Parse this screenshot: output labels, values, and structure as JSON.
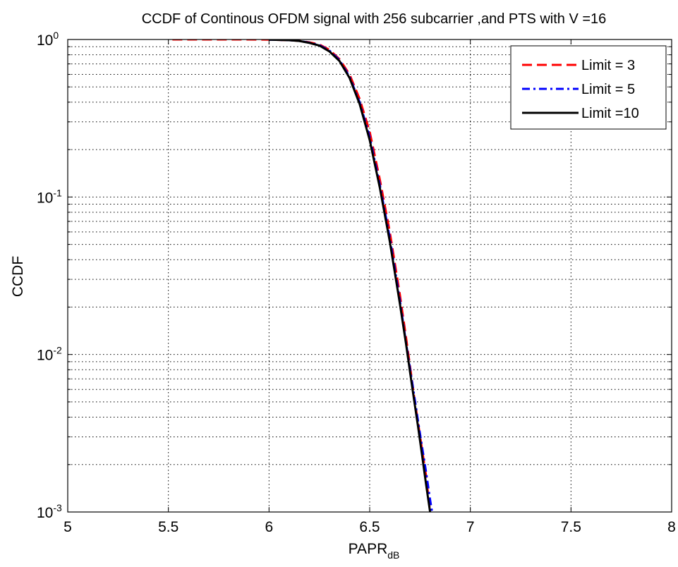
{
  "chart_data": {
    "type": "line",
    "title": "CCDF of Continous OFDM signal with 256 subcarrier ,and PTS with V =16",
    "xlabel": {
      "main": "PAPR",
      "subscript": "dB"
    },
    "ylabel": "CCDF",
    "xlim": [
      5,
      8
    ],
    "ylim": [
      0.001,
      1
    ],
    "yscale": "log",
    "grid": true,
    "legend_position": "top-right",
    "x_ticks": [
      "5",
      "5.5",
      "6",
      "6.5",
      "7",
      "7.5",
      "8"
    ],
    "y_ticks": [
      {
        "base": "10",
        "exp": "0"
      },
      {
        "base": "10",
        "exp": "-1"
      },
      {
        "base": "10",
        "exp": "-2"
      },
      {
        "base": "10",
        "exp": "-3"
      }
    ],
    "series": [
      {
        "name": "Limit = 3",
        "color": "#ff0000",
        "style": "dashed",
        "x": [
          5.52,
          5.6,
          5.7,
          5.8,
          5.9,
          6.0,
          6.1,
          6.15,
          6.2,
          6.25,
          6.3,
          6.35,
          6.4,
          6.45,
          6.5,
          6.55,
          6.6,
          6.65,
          6.68,
          6.7,
          6.72,
          6.74,
          6.76,
          6.78,
          6.8
        ],
        "y": [
          1.0,
          1.0,
          1.0,
          1.0,
          1.0,
          0.998,
          0.99,
          0.98,
          0.96,
          0.93,
          0.86,
          0.75,
          0.6,
          0.42,
          0.26,
          0.13,
          0.06,
          0.024,
          0.013,
          0.0085,
          0.0055,
          0.0037,
          0.0025,
          0.0017,
          0.001
        ]
      },
      {
        "name": "Limit = 5",
        "color": "#0000ff",
        "style": "dashdot",
        "x": [
          6.0,
          6.1,
          6.15,
          6.2,
          6.25,
          6.3,
          6.35,
          6.4,
          6.45,
          6.5,
          6.55,
          6.6,
          6.65,
          6.68,
          6.7,
          6.72,
          6.74,
          6.76,
          6.78,
          6.8,
          6.81
        ],
        "y": [
          0.998,
          0.99,
          0.98,
          0.955,
          0.92,
          0.85,
          0.74,
          0.58,
          0.4,
          0.24,
          0.12,
          0.055,
          0.022,
          0.012,
          0.0082,
          0.0056,
          0.0038,
          0.0026,
          0.0018,
          0.0012,
          0.001
        ]
      },
      {
        "name": "Limit =10",
        "color": "#000000",
        "style": "solid",
        "x": [
          6.0,
          6.1,
          6.15,
          6.2,
          6.25,
          6.3,
          6.35,
          6.4,
          6.45,
          6.5,
          6.55,
          6.6,
          6.65,
          6.68,
          6.7,
          6.72,
          6.74,
          6.76,
          6.78,
          6.8
        ],
        "y": [
          0.998,
          0.99,
          0.978,
          0.952,
          0.915,
          0.84,
          0.73,
          0.57,
          0.39,
          0.23,
          0.115,
          0.052,
          0.021,
          0.0118,
          0.0078,
          0.0052,
          0.0035,
          0.0023,
          0.0015,
          0.001
        ]
      }
    ]
  }
}
